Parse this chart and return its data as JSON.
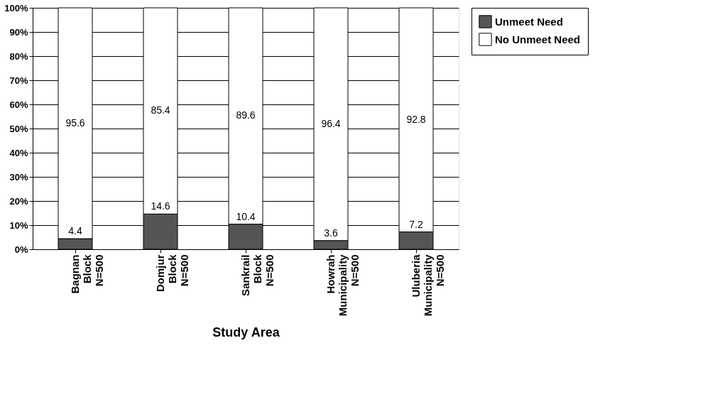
{
  "chart_data": {
    "type": "bar",
    "stacked": true,
    "xlabel": "Study Area",
    "categories": [
      "Bagnan Block N=500",
      "Domjur Block N=500",
      "Sankrail Block N=500",
      "Howrah Municipality N=500",
      "Uluberia Municipality N=500"
    ],
    "series": [
      {
        "name": "Unmeet Need",
        "color": "#555555",
        "values": [
          4.4,
          14.6,
          10.4,
          3.6,
          7.2
        ]
      },
      {
        "name": "No Unmeet Need",
        "color": "#ffffff",
        "values": [
          95.6,
          85.4,
          89.6,
          96.4,
          92.8
        ]
      }
    ],
    "ylim": [
      0,
      100
    ],
    "yticks": [
      {
        "value": 0,
        "label": "0%"
      },
      {
        "value": 10,
        "label": "10%"
      },
      {
        "value": 20,
        "label": "20%"
      },
      {
        "value": 30,
        "label": "30%"
      },
      {
        "value": 40,
        "label": "40%"
      },
      {
        "value": 50,
        "label": "50%"
      },
      {
        "value": 60,
        "label": "60%"
      },
      {
        "value": 70,
        "label": "70%"
      },
      {
        "value": 80,
        "label": "80%"
      },
      {
        "value": 90,
        "label": "90%"
      },
      {
        "value": 100,
        "label": "100%"
      }
    ],
    "grid": "y",
    "legend": "right",
    "data_labels": true
  }
}
